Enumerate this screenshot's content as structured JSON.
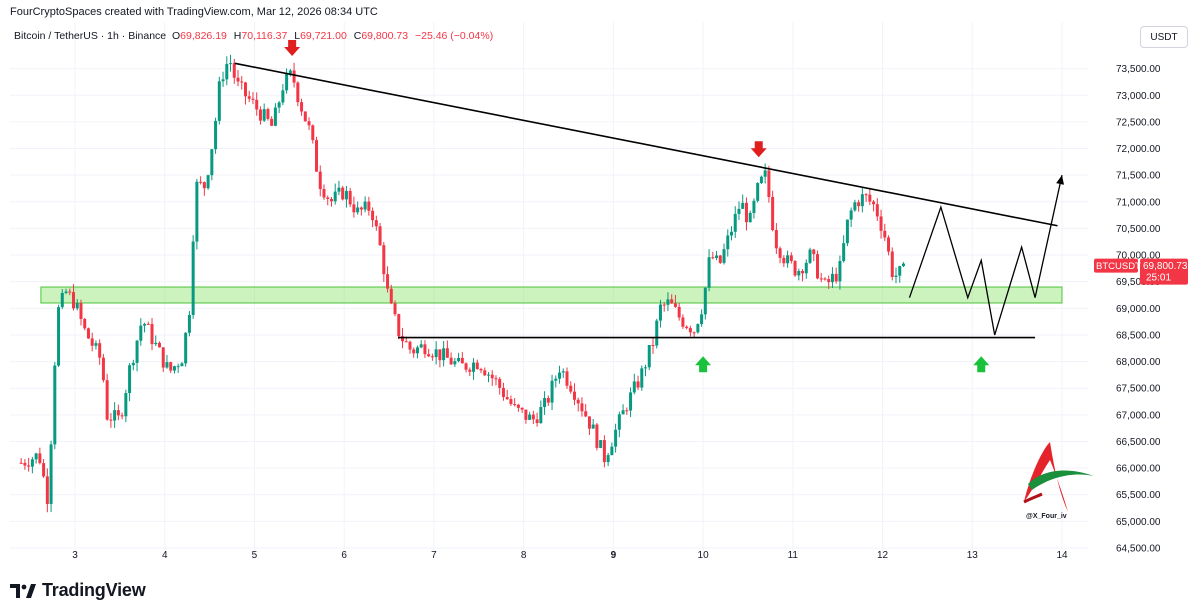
{
  "header": {
    "credit": "FourCryptoSpaces created with TradingView.com, Mar 12, 2026 08:34 UTC",
    "symbol": "Bitcoin / TetherUS · 1h · Binance",
    "open_key": "O",
    "open": "69,826.19",
    "high_key": "H",
    "high": "70,116.37",
    "low_key": "L",
    "low": "69,721.00",
    "close_key": "C",
    "close": "69,800.73",
    "change": "−25.46 (−0.04%)",
    "currency": "USDT"
  },
  "price_tag": {
    "ticker": "BTCUSDT",
    "price": "69,800.73",
    "countdown": "25:01"
  },
  "watermark": {
    "handle": "@X_Four_iv"
  },
  "footer": {
    "brand": "TradingView"
  },
  "colors": {
    "up": "#089981",
    "down": "#f23645",
    "zone": "#7ed957",
    "arrow_down": "#e01e1e",
    "arrow_up": "#19c23a"
  },
  "chart_data": {
    "type": "candlestick",
    "interval": "1h",
    "ylim": [
      64500,
      74000
    ],
    "y_ticks": [
      "73,500.00",
      "73,000.00",
      "72,500.00",
      "72,000.00",
      "71,500.00",
      "71,000.00",
      "70,500.00",
      "70,000.00",
      "69,500.00",
      "69,000.00",
      "68,500.00",
      "68,000.00",
      "67,500.00",
      "67,000.00",
      "66,500.00",
      "66,000.00",
      "65,500.00",
      "65,000.00",
      "64,500.00"
    ],
    "x_ticks": [
      "3",
      "4",
      "5",
      "6",
      "7",
      "8",
      "9",
      "10",
      "11",
      "12",
      "13",
      "14"
    ],
    "x_tick_days": [
      3,
      4,
      5,
      6,
      7,
      8,
      9,
      10,
      11,
      12,
      13,
      14
    ],
    "bold_x_tick": "9",
    "close_path": [
      [
        2.4,
        66100
      ],
      [
        2.6,
        66250
      ],
      [
        2.7,
        65400
      ],
      [
        2.8,
        68900
      ],
      [
        2.9,
        69300
      ],
      [
        3.0,
        69100
      ],
      [
        3.1,
        68600
      ],
      [
        3.3,
        68000
      ],
      [
        3.35,
        67000
      ],
      [
        3.5,
        66900
      ],
      [
        3.6,
        67800
      ],
      [
        3.75,
        68800
      ],
      [
        3.9,
        68300
      ],
      [
        4.05,
        67800
      ],
      [
        4.2,
        68100
      ],
      [
        4.3,
        69300
      ],
      [
        4.33,
        71300
      ],
      [
        4.45,
        71300
      ],
      [
        4.55,
        72300
      ],
      [
        4.62,
        73300
      ],
      [
        4.72,
        73700
      ],
      [
        4.8,
        73200
      ],
      [
        4.95,
        72900
      ],
      [
        5.1,
        72600
      ],
      [
        5.2,
        72400
      ],
      [
        5.32,
        73200
      ],
      [
        5.42,
        73400
      ],
      [
        5.5,
        72900
      ],
      [
        5.62,
        72300
      ],
      [
        5.72,
        71400
      ],
      [
        5.85,
        71000
      ],
      [
        6.0,
        71200
      ],
      [
        6.15,
        70800
      ],
      [
        6.3,
        70900
      ],
      [
        6.42,
        70000
      ],
      [
        6.5,
        69100
      ],
      [
        6.62,
        68500
      ],
      [
        6.75,
        68200
      ],
      [
        6.9,
        68300
      ],
      [
        7.1,
        68100
      ],
      [
        7.3,
        67900
      ],
      [
        7.5,
        68000
      ],
      [
        7.7,
        67600
      ],
      [
        7.9,
        67100
      ],
      [
        8.1,
        66900
      ],
      [
        8.25,
        67200
      ],
      [
        8.4,
        67900
      ],
      [
        8.55,
        67500
      ],
      [
        8.75,
        66800
      ],
      [
        8.9,
        66200
      ],
      [
        9.05,
        66800
      ],
      [
        9.15,
        67200
      ],
      [
        9.3,
        67700
      ],
      [
        9.45,
        68400
      ],
      [
        9.52,
        69000
      ],
      [
        9.62,
        69100
      ],
      [
        9.75,
        68800
      ],
      [
        9.9,
        68600
      ],
      [
        10.0,
        69100
      ],
      [
        10.08,
        70000
      ],
      [
        10.18,
        69800
      ],
      [
        10.3,
        70400
      ],
      [
        10.42,
        71000
      ],
      [
        10.52,
        70600
      ],
      [
        10.62,
        71300
      ],
      [
        10.7,
        71500
      ],
      [
        10.8,
        70300
      ],
      [
        10.92,
        69900
      ],
      [
        11.05,
        69700
      ],
      [
        11.2,
        70000
      ],
      [
        11.35,
        69400
      ],
      [
        11.52,
        69700
      ],
      [
        11.62,
        70700
      ],
      [
        11.7,
        71000
      ],
      [
        11.8,
        71100
      ],
      [
        11.92,
        70900
      ],
      [
        12.02,
        70400
      ],
      [
        12.12,
        69600
      ],
      [
        12.25,
        69700
      ]
    ],
    "resistance_trendline": {
      "from": [
        4.78,
        73600
      ],
      "to": [
        13.95,
        70550
      ]
    },
    "support_line": {
      "from": [
        6.6,
        68450
      ],
      "to": [
        13.7,
        68450
      ],
      "value": 68450
    },
    "support_zone": [
      69100,
      69400
    ],
    "projection_path": [
      [
        12.3,
        69200
      ],
      [
        12.65,
        70900
      ],
      [
        12.95,
        69200
      ],
      [
        13.1,
        69900
      ],
      [
        13.25,
        68500
      ],
      [
        13.55,
        70150
      ],
      [
        13.7,
        69200
      ],
      [
        14.0,
        71500
      ]
    ],
    "markers": [
      {
        "type": "arrow_down",
        "x": 5.42,
        "y": 73850
      },
      {
        "type": "arrow_down",
        "x": 10.62,
        "y": 71950
      },
      {
        "type": "arrow_up",
        "x": 10.0,
        "y": 67950
      },
      {
        "type": "arrow_up",
        "x": 13.1,
        "y": 67950
      }
    ],
    "current_price": 69800.73
  }
}
